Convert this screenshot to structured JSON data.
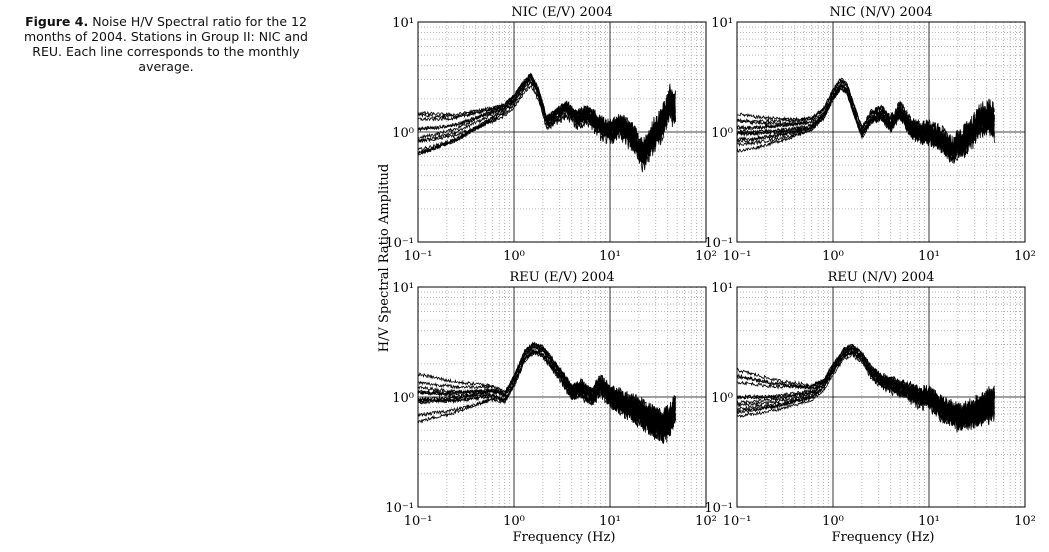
{
  "caption": {
    "label": "Figure 4.",
    "text": "Noise H/V Spectral ratio for the 12 months of 2004. Stations in Group II: NIC and REU. Each line corresponds to the monthly average."
  },
  "shared": {
    "ylabel": "H/V Spectral Ratio Amplitud",
    "xlabel": "Frequency (Hz)"
  },
  "chart_data": [
    {
      "type": "line",
      "title": "NIC (E/V) 2004",
      "xscale": "log",
      "yscale": "log",
      "xlim": [
        0.1,
        100
      ],
      "ylim": [
        0.1,
        10
      ],
      "xticks": [
        "10⁻¹",
        "10⁰",
        "10¹",
        "10²"
      ],
      "yticks": [
        "10⁻¹",
        "10⁰",
        "10¹"
      ],
      "grid": true,
      "series_count": 12,
      "profile": {
        "x": [
          0.1,
          0.15,
          0.25,
          0.4,
          0.6,
          0.8,
          1.0,
          1.2,
          1.5,
          1.8,
          2.2,
          2.8,
          3.5,
          4.5,
          6,
          8,
          10,
          13,
          17,
          22,
          28,
          35,
          42,
          48
        ],
        "y": [
          0.85,
          0.9,
          1.0,
          1.2,
          1.4,
          1.6,
          1.9,
          2.4,
          3.0,
          2.2,
          1.2,
          1.4,
          1.6,
          1.3,
          1.4,
          1.1,
          1.0,
          1.1,
          0.9,
          0.6,
          0.9,
          1.2,
          1.8,
          1.6
        ]
      },
      "xmax_data": 48
    },
    {
      "type": "line",
      "title": "NIC (N/V) 2004",
      "xscale": "log",
      "yscale": "log",
      "xlim": [
        0.1,
        100
      ],
      "ylim": [
        0.1,
        10
      ],
      "xticks": [
        "10⁻¹",
        "10⁰",
        "10¹",
        "10²"
      ],
      "yticks": [
        "10⁻¹",
        "10⁰",
        "10¹"
      ],
      "grid": true,
      "series_count": 12,
      "profile": {
        "x": [
          0.1,
          0.15,
          0.25,
          0.4,
          0.6,
          0.8,
          1.0,
          1.2,
          1.4,
          1.7,
          2.0,
          2.5,
          3.2,
          4,
          5,
          6.5,
          8,
          10,
          13,
          17,
          22,
          28,
          35,
          42,
          48
        ],
        "y": [
          1.0,
          1.0,
          1.05,
          1.1,
          1.2,
          1.5,
          2.2,
          2.8,
          2.5,
          1.5,
          1.0,
          1.4,
          1.5,
          1.2,
          1.6,
          1.1,
          1.0,
          1.0,
          0.9,
          0.7,
          0.8,
          1.0,
          1.3,
          1.4,
          1.2
        ]
      },
      "xmax_data": 48
    },
    {
      "type": "line",
      "title": "REU (E/V) 2004",
      "xscale": "log",
      "yscale": "log",
      "xlim": [
        0.1,
        100
      ],
      "ylim": [
        0.1,
        10
      ],
      "xticks": [
        "10⁻¹",
        "10⁰",
        "10¹",
        "10²"
      ],
      "yticks": [
        "10⁻¹",
        "10⁰",
        "10¹"
      ],
      "grid": true,
      "series_count": 12,
      "profile": {
        "x": [
          0.1,
          0.15,
          0.25,
          0.4,
          0.6,
          0.8,
          1.0,
          1.3,
          1.6,
          2.0,
          2.5,
          3.2,
          4,
          5,
          6.5,
          8,
          10,
          13,
          17,
          22,
          28,
          35,
          42,
          48
        ],
        "y": [
          1.0,
          1.0,
          1.0,
          1.05,
          1.1,
          1.0,
          1.4,
          2.4,
          2.8,
          2.6,
          2.0,
          1.5,
          1.1,
          1.2,
          1.0,
          1.3,
          1.0,
          0.9,
          0.8,
          0.7,
          0.6,
          0.55,
          0.6,
          0.8
        ]
      },
      "xmax_data": 48
    },
    {
      "type": "line",
      "title": "REU (N/V) 2004",
      "xscale": "log",
      "yscale": "log",
      "xlim": [
        0.1,
        100
      ],
      "ylim": [
        0.1,
        10
      ],
      "xticks": [
        "10⁻¹",
        "10⁰",
        "10¹",
        "10²"
      ],
      "yticks": [
        "10⁻¹",
        "10⁰",
        "10¹"
      ],
      "grid": true,
      "series_count": 12,
      "profile": {
        "x": [
          0.1,
          0.15,
          0.25,
          0.4,
          0.6,
          0.8,
          1.0,
          1.3,
          1.6,
          2.0,
          2.5,
          3.2,
          4,
          5,
          6.5,
          8,
          10,
          13,
          17,
          22,
          28,
          35,
          42,
          48
        ],
        "y": [
          1.0,
          1.0,
          1.0,
          1.05,
          1.1,
          1.3,
          1.8,
          2.5,
          2.7,
          2.3,
          1.7,
          1.4,
          1.3,
          1.2,
          1.1,
          1.0,
          1.0,
          0.8,
          0.7,
          0.65,
          0.7,
          0.75,
          0.85,
          0.9
        ]
      },
      "xmax_data": 48
    }
  ]
}
